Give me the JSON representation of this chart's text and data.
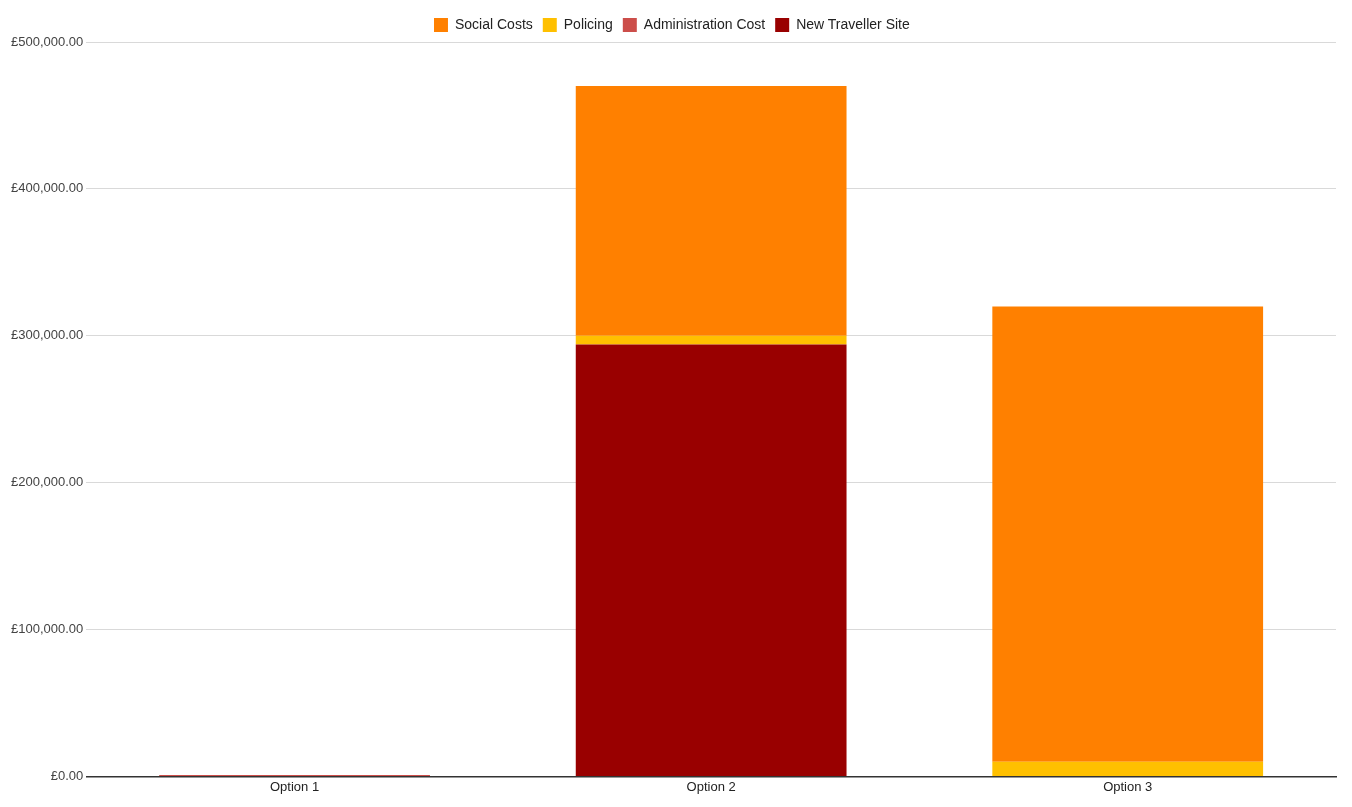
{
  "chart_data": {
    "type": "bar",
    "stacked": true,
    "categories": [
      "Option 1",
      "Option 2",
      "Option 3"
    ],
    "series": [
      {
        "name": "New Traveller Site",
        "color": "#990000",
        "values": [
          0,
          294000,
          0
        ]
      },
      {
        "name": "Administration Cost",
        "color": "#cc4e4a",
        "values": [
          1000,
          0,
          0
        ]
      },
      {
        "name": "Policing",
        "color": "#ffc000",
        "values": [
          0,
          6000,
          10000
        ]
      },
      {
        "name": "Social Costs",
        "color": "#ff8000",
        "values": [
          0,
          170000,
          310000
        ]
      }
    ],
    "ylim": [
      0,
      500000
    ],
    "yticks": [
      {
        "value": 0,
        "label": "£0.00"
      },
      {
        "value": 100000,
        "label": "£100,000.00"
      },
      {
        "value": 200000,
        "label": "£200,000.00"
      },
      {
        "value": 300000,
        "label": "£300,000.00"
      },
      {
        "value": 400000,
        "label": "£400,000.00"
      },
      {
        "value": 500000,
        "label": "£500,000.00"
      }
    ],
    "grid": "y",
    "legend": "top"
  }
}
